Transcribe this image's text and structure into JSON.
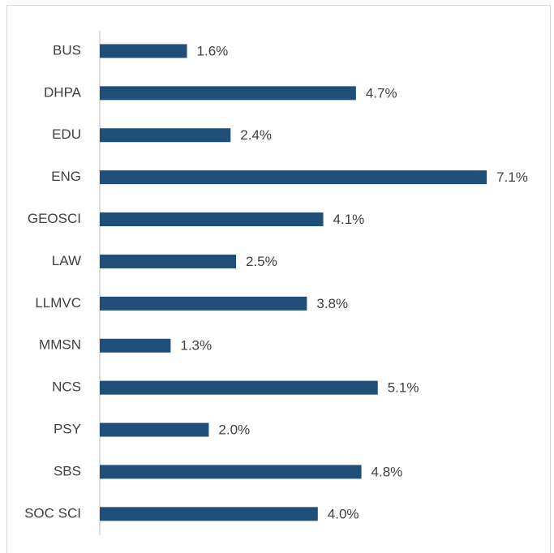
{
  "chart_data": {
    "type": "bar",
    "orientation": "horizontal",
    "categories": [
      "BUS",
      "DHPA",
      "EDU",
      "ENG",
      "GEOSCI",
      "LAW",
      "LLMVC",
      "MMSN",
      "NCS",
      "PSY",
      "SBS",
      "SOC SCI"
    ],
    "values": [
      1.6,
      4.7,
      2.4,
      7.1,
      4.1,
      2.5,
      3.8,
      1.3,
      5.1,
      2.0,
      4.8,
      4.0
    ],
    "value_labels": [
      "1.6%",
      "4.7%",
      "2.4%",
      "7.1%",
      "4.1%",
      "2.5%",
      "3.8%",
      "1.3%",
      "5.1%",
      "2.0%",
      "4.8%",
      "4.0%"
    ],
    "color": "#1f4e79"
  }
}
